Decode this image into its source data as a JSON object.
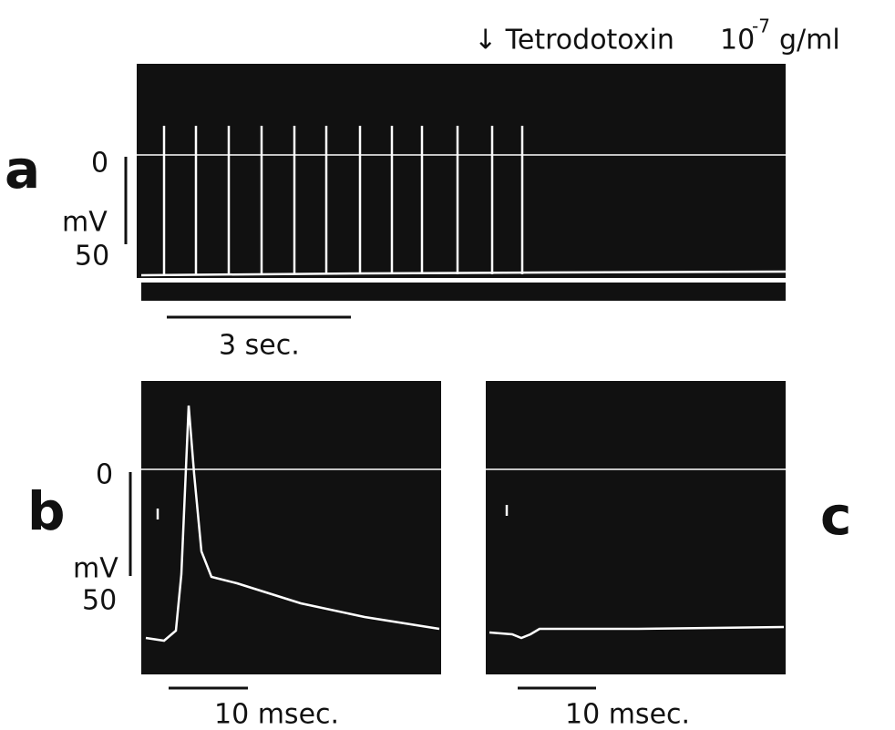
{
  "header": {
    "annotation": "↓ Tetrodotoxin",
    "concentration_base": "10",
    "concentration_exponent": "-7",
    "concentration_unit": "g/ml"
  },
  "panels": [
    {
      "label": "a",
      "scale": {
        "zero": "0",
        "unit": "mV",
        "value": "50"
      },
      "time_scale": "3 sec."
    },
    {
      "label": "b",
      "scale": {
        "zero": "0",
        "unit": "mV",
        "value": "50"
      },
      "time_scale": "10 msec."
    },
    {
      "label": "c",
      "time_scale": "10 msec."
    }
  ]
}
